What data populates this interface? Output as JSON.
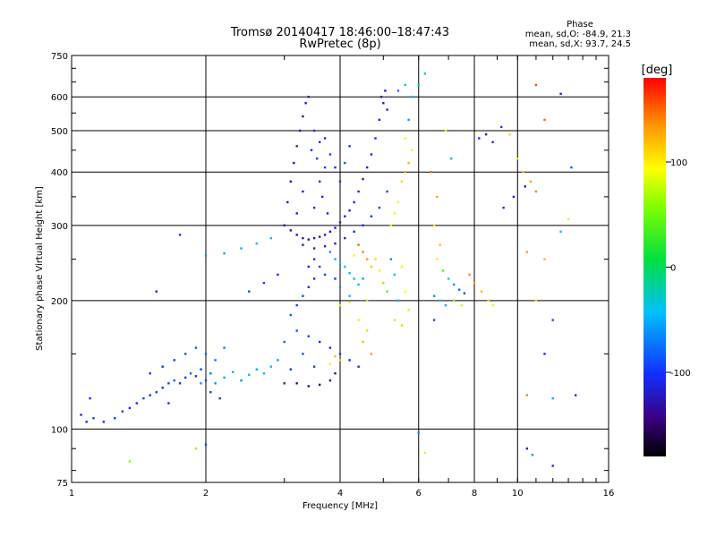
{
  "chart_data": {
    "type": "scatter",
    "title": "Tromsø 20140417 18:46:00–18:47:43",
    "subtitle": "RwPretec (8p)",
    "xlabel": "Frequency [MHz]",
    "ylabel": "Stationary phase Virtual Height [km]",
    "x_scale": "log",
    "y_scale": "log",
    "xlim": [
      1,
      16
    ],
    "ylim": [
      75,
      750
    ],
    "x_ticks": [
      {
        "value": 1,
        "label": "1"
      },
      {
        "value": 2,
        "label": "2"
      },
      {
        "value": 4,
        "label": "4"
      },
      {
        "value": 6,
        "label": "6"
      },
      {
        "value": 8,
        "label": "8"
      },
      {
        "value": 10,
        "label": "10"
      },
      {
        "value": 16,
        "label": "16"
      }
    ],
    "y_ticks": [
      {
        "value": 75,
        "label": "75"
      },
      {
        "value": 100,
        "label": "100"
      },
      {
        "value": 200,
        "label": "200"
      },
      {
        "value": 300,
        "label": "300"
      },
      {
        "value": 400,
        "label": "400"
      },
      {
        "value": 500,
        "label": "500"
      },
      {
        "value": 600,
        "label": "600"
      },
      {
        "value": 750,
        "label": "750"
      }
    ],
    "grid": true,
    "stats": {
      "heading": "Phase",
      "line_o": "mean, sd,O: -84.9, 21.3",
      "line_x": "mean, sd,X:  93.7, 24.5"
    },
    "colorbar": {
      "label": "[deg]",
      "range": [
        -180,
        180
      ],
      "ticks": [
        {
          "value": 100,
          "label": "100"
        },
        {
          "value": 0,
          "label": "0"
        },
        {
          "value": -100,
          "label": "-100"
        }
      ]
    },
    "points": [
      [
        1.05,
        108,
        -110
      ],
      [
        1.08,
        104,
        -100
      ],
      [
        1.12,
        106,
        -95
      ],
      [
        1.18,
        104,
        -105
      ],
      [
        1.25,
        106,
        -100
      ],
      [
        1.3,
        110,
        -95
      ],
      [
        1.35,
        112,
        -110
      ],
      [
        1.4,
        115,
        -100
      ],
      [
        1.45,
        118,
        -90
      ],
      [
        1.5,
        120,
        -105
      ],
      [
        1.55,
        122,
        -95
      ],
      [
        1.6,
        125,
        -100
      ],
      [
        1.65,
        128,
        -95
      ],
      [
        1.7,
        130,
        -85
      ],
      [
        1.75,
        128,
        -100
      ],
      [
        1.8,
        132,
        -95
      ],
      [
        1.85,
        135,
        -80
      ],
      [
        1.9,
        133,
        -100
      ],
      [
        1.95,
        138,
        -95
      ],
      [
        2.0,
        130,
        -90
      ],
      [
        2.05,
        135,
        -70
      ],
      [
        2.1,
        128,
        -60
      ],
      [
        2.2,
        132,
        -55
      ],
      [
        2.3,
        136,
        -50
      ],
      [
        2.4,
        130,
        -60
      ],
      [
        2.5,
        134,
        -45
      ],
      [
        2.6,
        138,
        -50
      ],
      [
        2.7,
        135,
        -40
      ],
      [
        2.8,
        140,
        -45
      ],
      [
        2.9,
        145,
        -55
      ],
      [
        1.6,
        140,
        -100
      ],
      [
        1.7,
        145,
        -95
      ],
      [
        1.8,
        150,
        -90
      ],
      [
        1.9,
        155,
        -85
      ],
      [
        2.0,
        150,
        -80
      ],
      [
        2.1,
        145,
        -75
      ],
      [
        2.2,
        155,
        -70
      ],
      [
        1.95,
        128,
        -60
      ],
      [
        2.05,
        122,
        -95
      ],
      [
        2.15,
        118,
        -100
      ],
      [
        1.55,
        210,
        -110
      ],
      [
        2.0,
        92,
        -90
      ],
      [
        1.1,
        118,
        -100
      ],
      [
        1.5,
        135,
        -95
      ],
      [
        1.65,
        115,
        -100
      ],
      [
        2.0,
        255,
        -60
      ],
      [
        2.2,
        258,
        -55
      ],
      [
        2.4,
        265,
        -50
      ],
      [
        2.6,
        272,
        -45
      ],
      [
        2.8,
        280,
        -40
      ],
      [
        2.5,
        210,
        -90
      ],
      [
        2.7,
        220,
        -95
      ],
      [
        2.9,
        230,
        -100
      ],
      [
        3.1,
        185,
        -85
      ],
      [
        3.2,
        195,
        -95
      ],
      [
        3.3,
        205,
        -90
      ],
      [
        3.4,
        215,
        -100
      ],
      [
        3.5,
        225,
        -105
      ],
      [
        3.2,
        170,
        -90
      ],
      [
        3.4,
        165,
        -95
      ],
      [
        3.6,
        160,
        -100
      ],
      [
        3.8,
        155,
        -110
      ],
      [
        4.0,
        150,
        -95
      ],
      [
        4.2,
        145,
        -100
      ],
      [
        4.4,
        140,
        -105
      ],
      [
        3.0,
        160,
        -80
      ],
      [
        3.3,
        150,
        -90
      ],
      [
        3.5,
        140,
        -95
      ],
      [
        3.2,
        128,
        -140
      ],
      [
        3.4,
        126,
        -145
      ],
      [
        3.6,
        127,
        -140
      ],
      [
        3.8,
        130,
        -135
      ],
      [
        3.9,
        135,
        -130
      ],
      [
        3.9,
        148,
        120
      ],
      [
        4.0,
        145,
        110
      ],
      [
        3.8,
        142,
        100
      ],
      [
        3.0,
        128,
        -110
      ],
      [
        3.1,
        138,
        -100
      ],
      [
        3.0,
        300,
        -125
      ],
      [
        3.1,
        292,
        -125
      ],
      [
        3.2,
        285,
        -128
      ],
      [
        3.3,
        280,
        -130
      ],
      [
        3.4,
        278,
        -125
      ],
      [
        3.5,
        280,
        -130
      ],
      [
        3.6,
        282,
        -125
      ],
      [
        3.7,
        285,
        -120
      ],
      [
        3.8,
        290,
        -125
      ],
      [
        3.9,
        296,
        -120
      ],
      [
        4.0,
        305,
        -118
      ],
      [
        4.1,
        315,
        -115
      ],
      [
        4.2,
        325,
        -120
      ],
      [
        4.3,
        340,
        -115
      ],
      [
        4.4,
        360,
        -110
      ],
      [
        4.5,
        385,
        -115
      ],
      [
        4.6,
        410,
        -110
      ],
      [
        4.7,
        440,
        -115
      ],
      [
        4.8,
        480,
        -110
      ],
      [
        4.9,
        530,
        -115
      ],
      [
        5.0,
        580,
        -118
      ],
      [
        5.05,
        620,
        -120
      ],
      [
        4.95,
        600,
        -125
      ],
      [
        5.1,
        560,
        -110
      ],
      [
        3.05,
        340,
        -120
      ],
      [
        3.1,
        380,
        -125
      ],
      [
        3.15,
        420,
        -120
      ],
      [
        3.2,
        460,
        -115
      ],
      [
        3.25,
        500,
        -120
      ],
      [
        3.3,
        540,
        -125
      ],
      [
        3.35,
        580,
        -120
      ],
      [
        3.4,
        600,
        -125
      ],
      [
        3.2,
        320,
        -118
      ],
      [
        3.3,
        360,
        -122
      ],
      [
        3.45,
        450,
        -110
      ],
      [
        3.5,
        500,
        -105
      ],
      [
        3.55,
        430,
        -95
      ],
      [
        3.6,
        470,
        -100
      ],
      [
        3.7,
        480,
        -110
      ],
      [
        3.8,
        440,
        -90
      ],
      [
        3.9,
        410,
        -100
      ],
      [
        4.0,
        380,
        -95
      ],
      [
        4.1,
        420,
        -85
      ],
      [
        4.2,
        460,
        -100
      ],
      [
        3.6,
        380,
        -100
      ],
      [
        3.7,
        410,
        -95
      ],
      [
        3.5,
        330,
        -110
      ],
      [
        3.65,
        350,
        -105
      ],
      [
        3.75,
        320,
        -120
      ],
      [
        3.3,
        270,
        -120
      ],
      [
        3.5,
        265,
        -115
      ],
      [
        3.7,
        268,
        -110
      ],
      [
        3.9,
        272,
        -120
      ],
      [
        4.1,
        280,
        -115
      ],
      [
        4.3,
        290,
        -110
      ],
      [
        4.5,
        300,
        -105
      ],
      [
        4.7,
        315,
        -100
      ],
      [
        4.9,
        330,
        -95
      ],
      [
        5.1,
        360,
        -90
      ],
      [
        3.8,
        260,
        -60
      ],
      [
        3.9,
        250,
        -50
      ],
      [
        4.0,
        245,
        -40
      ],
      [
        4.1,
        240,
        -45
      ],
      [
        4.2,
        232,
        -35
      ],
      [
        4.3,
        225,
        -50
      ],
      [
        4.4,
        218,
        -40
      ],
      [
        4.5,
        225,
        -55
      ],
      [
        4.0,
        215,
        -60
      ],
      [
        4.2,
        205,
        -45
      ],
      [
        3.6,
        240,
        -95
      ],
      [
        3.7,
        230,
        -90
      ],
      [
        3.9,
        225,
        -100
      ],
      [
        3.5,
        250,
        -105
      ],
      [
        3.4,
        240,
        -110
      ],
      [
        4.4,
        270,
        150
      ],
      [
        4.5,
        260,
        140
      ],
      [
        4.6,
        250,
        130
      ],
      [
        4.7,
        240,
        120
      ],
      [
        4.8,
        250,
        110
      ],
      [
        4.3,
        255,
        90
      ],
      [
        4.9,
        235,
        100
      ],
      [
        4.2,
        198,
        90
      ],
      [
        4.0,
        195,
        80
      ],
      [
        4.6,
        200,
        70
      ],
      [
        5.0,
        220,
        60
      ],
      [
        5.1,
        210,
        40
      ],
      [
        5.3,
        230,
        -40
      ],
      [
        5.2,
        250,
        -60
      ],
      [
        5.4,
        200,
        -50
      ],
      [
        5.5,
        240,
        100
      ],
      [
        5.6,
        210,
        90
      ],
      [
        5.7,
        190,
        80
      ],
      [
        5.3,
        180,
        110
      ],
      [
        5.5,
        175,
        70
      ],
      [
        5.6,
        400,
        130
      ],
      [
        5.7,
        420,
        120
      ],
      [
        5.5,
        380,
        110
      ],
      [
        5.8,
        450,
        90
      ],
      [
        5.6,
        480,
        100
      ],
      [
        5.7,
        530,
        -60
      ],
      [
        5.8,
        600,
        -50
      ],
      [
        5.6,
        640,
        -40
      ],
      [
        5.4,
        620,
        -70
      ],
      [
        5.2,
        300,
        80
      ],
      [
        5.3,
        320,
        100
      ],
      [
        5.4,
        340,
        90
      ],
      [
        4.5,
        160,
        120
      ],
      [
        4.6,
        170,
        110
      ],
      [
        4.4,
        180,
        100
      ],
      [
        4.7,
        150,
        130
      ],
      [
        6.0,
        640,
        -20
      ],
      [
        6.2,
        680,
        -30
      ],
      [
        6.5,
        300,
        110
      ],
      [
        6.7,
        270,
        120
      ],
      [
        6.6,
        250,
        100
      ],
      [
        6.8,
        235,
        40
      ],
      [
        7.0,
        225,
        -40
      ],
      [
        7.2,
        218,
        -60
      ],
      [
        7.4,
        212,
        -80
      ],
      [
        7.6,
        208,
        -90
      ],
      [
        6.5,
        205,
        -60
      ],
      [
        6.7,
        200,
        -40
      ],
      [
        6.9,
        195,
        -50
      ],
      [
        7.2,
        200,
        60
      ],
      [
        7.5,
        195,
        80
      ],
      [
        7.8,
        230,
        140
      ],
      [
        8.0,
        220,
        130
      ],
      [
        8.3,
        210,
        120
      ],
      [
        8.6,
        200,
        110
      ],
      [
        8.8,
        195,
        100
      ],
      [
        6.4,
        400,
        150
      ],
      [
        6.6,
        350,
        130
      ],
      [
        6.9,
        500,
        100
      ],
      [
        7.1,
        430,
        -30
      ],
      [
        8.2,
        480,
        -100
      ],
      [
        8.5,
        490,
        -110
      ],
      [
        8.8,
        470,
        -105
      ],
      [
        9.2,
        510,
        -95
      ],
      [
        9.6,
        490,
        110
      ],
      [
        10.0,
        430,
        80
      ],
      [
        10.3,
        400,
        120
      ],
      [
        10.7,
        380,
        130
      ],
      [
        11.0,
        360,
        140
      ],
      [
        9.3,
        330,
        -100
      ],
      [
        9.8,
        350,
        -110
      ],
      [
        10.4,
        370,
        -120
      ],
      [
        10.5,
        260,
        130
      ],
      [
        11.5,
        250,
        120
      ],
      [
        12.5,
        290,
        -40
      ],
      [
        13.0,
        310,
        80
      ],
      [
        10.5,
        90,
        -110
      ],
      [
        12.0,
        82,
        -100
      ],
      [
        10.8,
        87,
        -60
      ],
      [
        11.0,
        640,
        160
      ],
      [
        12.5,
        610,
        -110
      ],
      [
        11.5,
        530,
        150
      ],
      [
        13.2,
        410,
        -80
      ],
      [
        10.5,
        120,
        140
      ],
      [
        12.0,
        118,
        -50
      ],
      [
        11.5,
        150,
        -100
      ],
      [
        12.0,
        180,
        -90
      ],
      [
        11.0,
        200,
        110
      ],
      [
        13.5,
        120,
        -100
      ],
      [
        6.0,
        98,
        -60
      ],
      [
        6.2,
        88,
        80
      ],
      [
        6.5,
        180,
        -90
      ],
      [
        1.35,
        84,
        60
      ],
      [
        1.75,
        285,
        -100
      ],
      [
        1.9,
        90,
        60
      ]
    ]
  }
}
